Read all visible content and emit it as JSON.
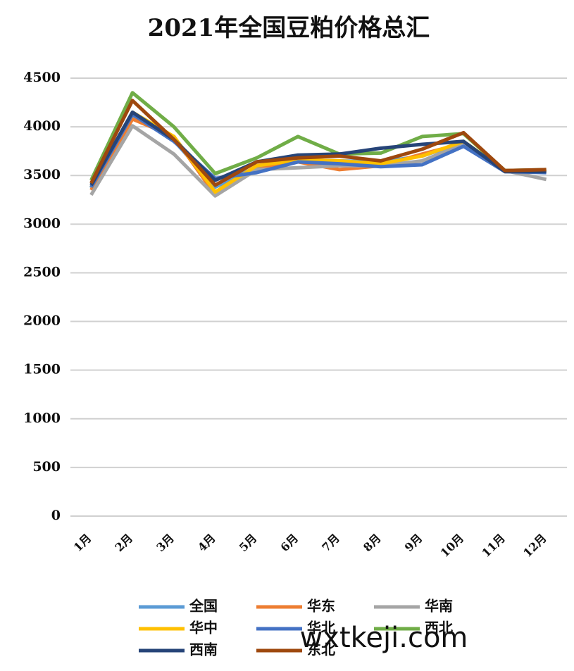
{
  "chart_data": {
    "type": "line",
    "title": "2021年全国豆粕价格总汇",
    "categories": [
      "1月",
      "2月",
      "3月",
      "4月",
      "5月",
      "6月",
      "7月",
      "8月",
      "9月",
      "10月",
      "11月",
      "12月"
    ],
    "series": [
      {
        "name": "全国",
        "color": "#5b9bd5",
        "values": [
          3370,
          4120,
          3860,
          3380,
          3590,
          3660,
          3650,
          3640,
          3700,
          3840,
          3550,
          3540
        ]
      },
      {
        "name": "华东",
        "color": "#ed7d31",
        "values": [
          3350,
          4080,
          3900,
          3300,
          3560,
          3640,
          3560,
          3600,
          3720,
          3830,
          3550,
          3550
        ]
      },
      {
        "name": "华南",
        "color": "#a5a5a5",
        "values": [
          3300,
          4010,
          3720,
          3290,
          3560,
          3580,
          3600,
          3600,
          3650,
          3820,
          3550,
          3460
        ]
      },
      {
        "name": "华中",
        "color": "#ffc000",
        "values": [
          3380,
          4150,
          3900,
          3330,
          3600,
          3660,
          3650,
          3620,
          3700,
          3850,
          3550,
          3540
        ]
      },
      {
        "name": "华北",
        "color": "#4472c4",
        "values": [
          3380,
          4130,
          3850,
          3470,
          3530,
          3640,
          3620,
          3590,
          3610,
          3800,
          3540,
          3530
        ]
      },
      {
        "name": "西北",
        "color": "#70ad47",
        "values": [
          3450,
          4350,
          4000,
          3520,
          3680,
          3900,
          3720,
          3730,
          3900,
          3930,
          3550,
          3560
        ]
      },
      {
        "name": "西南",
        "color": "#264478",
        "values": [
          3400,
          4150,
          3870,
          3450,
          3640,
          3710,
          3720,
          3780,
          3820,
          3850,
          3540,
          3540
        ]
      },
      {
        "name": "东北",
        "color": "#9e480e",
        "values": [
          3420,
          4270,
          3870,
          3400,
          3640,
          3680,
          3700,
          3650,
          3770,
          3940,
          3550,
          3560
        ]
      }
    ],
    "ylim": [
      0,
      4500
    ],
    "yticks": [
      0,
      500,
      1000,
      1500,
      2000,
      2500,
      3000,
      3500,
      4000,
      4500
    ],
    "grid": true,
    "legend": "bottom",
    "watermark": "wxtkeji.com"
  }
}
